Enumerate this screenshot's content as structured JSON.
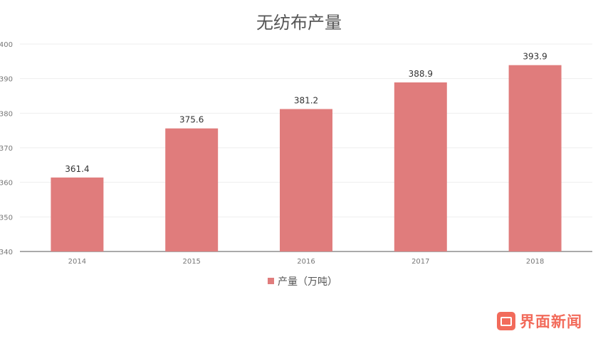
{
  "chart_data": {
    "type": "bar",
    "title": "无纺布产量",
    "categories": [
      "2014",
      "2015",
      "2016",
      "2017",
      "2018"
    ],
    "series": [
      {
        "name": "产量（万吨）",
        "values": [
          361.4,
          375.6,
          381.2,
          388.9,
          393.9
        ],
        "color": "#e07c7c"
      }
    ],
    "ylim": [
      340,
      400
    ],
    "yticks": [
      340,
      350,
      360,
      370,
      380,
      390,
      400
    ],
    "grid": true,
    "legend_position": "bottom",
    "show_data_labels": true
  },
  "watermark": {
    "icon": "jiemian-logo-icon",
    "text": "界面新闻",
    "color": "#f26b5b"
  }
}
